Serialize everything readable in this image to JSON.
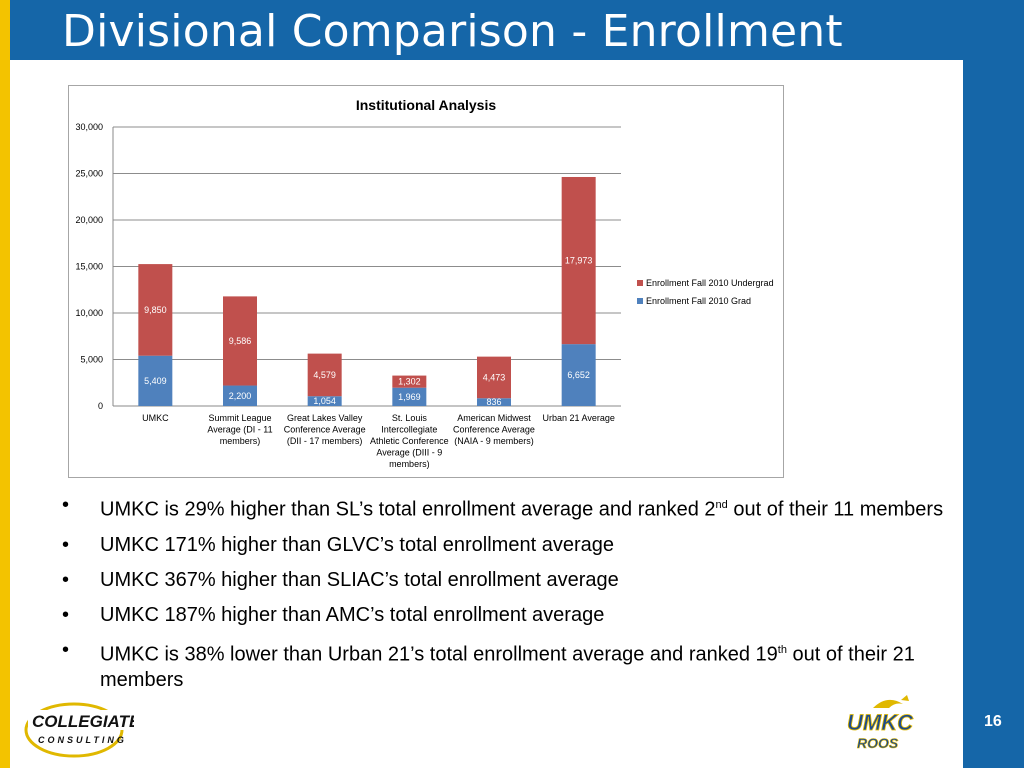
{
  "slide": {
    "title": "Divisional Comparison - Enrollment",
    "page_number": "16"
  },
  "logos": {
    "left": {
      "line1": "COLLEGIATE",
      "line2": "CONSULTING"
    },
    "right": {
      "line1": "UMKC",
      "line2": "ROOS"
    }
  },
  "colors": {
    "accent": "#1566a8",
    "gold": "#f3c300",
    "undergrad": "#c0504d",
    "grad": "#4f81bd"
  },
  "chart_data": {
    "type": "bar",
    "stacked": true,
    "title": "Institutional Analysis",
    "ylim": [
      0,
      30000
    ],
    "yticks": [
      "0",
      "5,000",
      "10,000",
      "15,000",
      "20,000",
      "25,000",
      "30,000"
    ],
    "grid": true,
    "legend_position": "right",
    "categories": [
      [
        "UMKC"
      ],
      [
        "Summit League",
        "Average (DI - 11",
        "members)"
      ],
      [
        "Great Lakes Valley",
        "Conference Average",
        "(DII - 17 members)"
      ],
      [
        "St. Louis",
        "Intercollegiate",
        "Athletic Conference",
        "Average (DIII - 9",
        "members)"
      ],
      [
        "American Midwest",
        "Conference Average",
        "(NAIA - 9 members)"
      ],
      [
        "Urban 21 Average"
      ]
    ],
    "series": [
      {
        "name": "Enrollment Fall 2010 Grad",
        "color": "#4f81bd",
        "values": [
          5409,
          2200,
          1054,
          1969,
          836,
          6652
        ],
        "labels": [
          "5,409",
          "2,200",
          "1,054",
          "1,969",
          "836",
          "6,652"
        ]
      },
      {
        "name": "Enrollment Fall 2010 Undergrad",
        "color": "#c0504d",
        "values": [
          9850,
          9586,
          4579,
          1302,
          4473,
          17973
        ],
        "labels": [
          "9,850",
          "9,586",
          "4,579",
          "1,302",
          "4,473",
          "17,973"
        ]
      }
    ]
  },
  "bullets": [
    {
      "pre": "UMKC is 29% higher than SL’s total enrollment average and ranked 2",
      "sup": "nd",
      "post": " out of  their 11 members"
    },
    {
      "pre": "UMKC 171% higher than GLVC’s total enrollment average",
      "sup": "",
      "post": ""
    },
    {
      "pre": "UMKC 367% higher than SLIAC’s total enrollment average",
      "sup": "",
      "post": ""
    },
    {
      "pre": "UMKC 187% higher than AMC’s total enrollment average",
      "sup": "",
      "post": ""
    },
    {
      "pre": "UMKC is 38% lower than Urban 21’s total enrollment average and ranked 19",
      "sup": "th",
      "post": " out of their 21 members"
    }
  ],
  "bullet_char": "•"
}
